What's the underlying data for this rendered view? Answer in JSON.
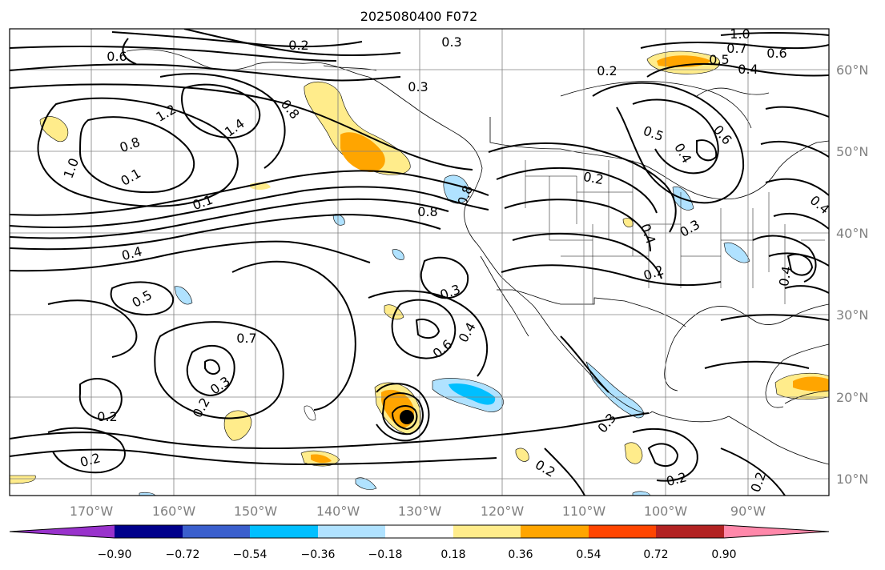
{
  "title": "2025080400 F072",
  "map": {
    "longitude_labels": [
      "170°W",
      "160°W",
      "150°W",
      "140°W",
      "130°W",
      "120°W",
      "110°W",
      "100°W",
      "90°W"
    ],
    "latitude_labels": [
      "60°N",
      "50°N",
      "40°N",
      "30°N",
      "20°N",
      "10°N"
    ],
    "gridlines": true,
    "region": "North-east Pacific and North America"
  },
  "contour_labels": [
    "0.6",
    "0.2",
    "0.3",
    "1.0",
    "0.7",
    "0.6",
    "0.5",
    "0.4",
    "0.2",
    "0.3",
    "1.2",
    "1.4",
    "0.8",
    "0.8",
    "1.0",
    "0.1",
    "0.1",
    "0.5",
    "0.4",
    "0.6",
    "0.2",
    "0.8",
    "0.8",
    "0.3",
    "0.4",
    "0.4",
    "0.2",
    "0.4",
    "0.4",
    "0.5",
    "0.3",
    "0.7",
    "0.6",
    "0.4",
    "0.3",
    "0.2",
    "0.2",
    "0.2",
    "0.3",
    "0.2",
    "0.2",
    "0.2"
  ],
  "colorbar": {
    "tick_labels": [
      "−0.90",
      "−0.72",
      "−0.54",
      "−0.36",
      "−0.18",
      "0.18",
      "0.36",
      "0.54",
      "0.72",
      "0.90"
    ],
    "colors": [
      "#9932cc",
      "#00008b",
      "#3a5fcd",
      "#00bfff",
      "#b0e2ff",
      "#ffffff",
      "#ffec8b",
      "#ffa500",
      "#ff4500",
      "#b22222",
      "#ff88aa"
    ],
    "extend": "both"
  }
}
